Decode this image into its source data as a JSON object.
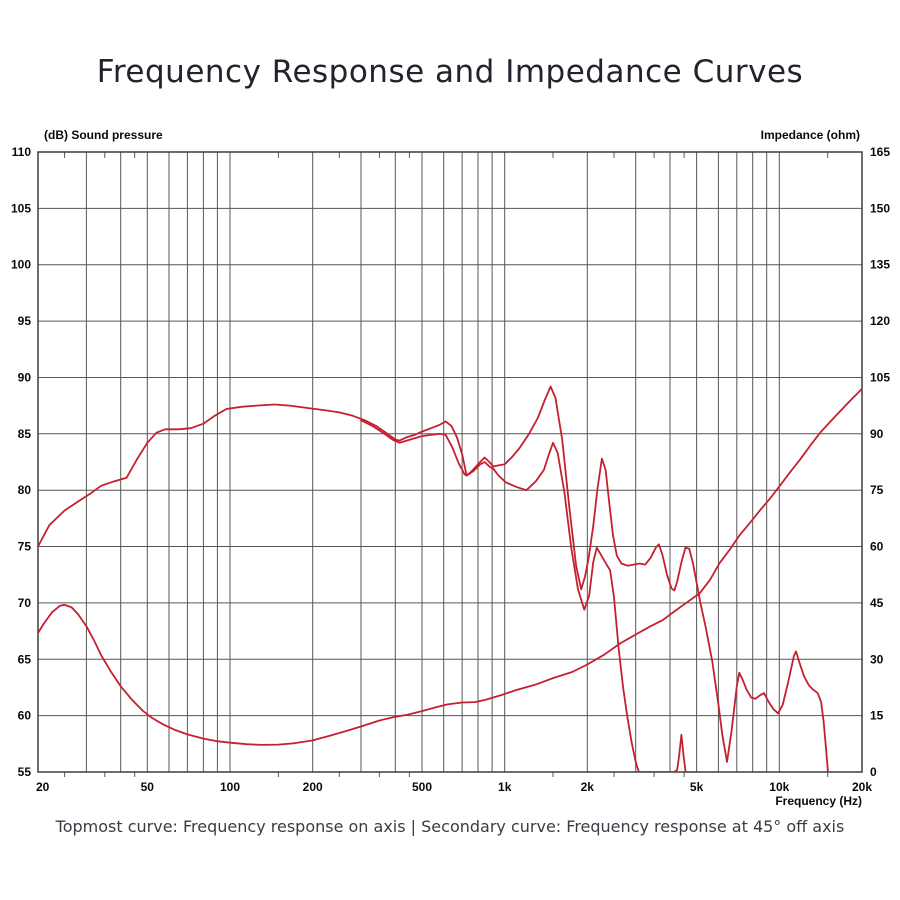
{
  "page": {
    "title": "Frequency Response and Impedance Curves",
    "caption": "Topmost curve: Frequency response on axis | Secondary curve: Frequency response at 45° off axis"
  },
  "style": {
    "background": "#ffffff",
    "curve_color": "#c4202f",
    "grid_color": "#575757",
    "frame_color": "#3d3d3d",
    "axis_text_color": "#0a0a0a",
    "title_color": "#23232d",
    "caption_color": "#3b3b46"
  },
  "chart_data": {
    "type": "line",
    "title": "Frequency Response and Impedance Curves",
    "x_axis": {
      "label": "Frequency  (Hz)",
      "scale": "log",
      "min": 20,
      "max": 20000,
      "gridlines": [
        30,
        40,
        50,
        60,
        70,
        80,
        90,
        100,
        200,
        300,
        400,
        500,
        600,
        700,
        800,
        900,
        1000,
        2000,
        3000,
        4000,
        5000,
        6000,
        7000,
        8000,
        9000,
        10000
      ],
      "minor_ticks": [
        25,
        35,
        45,
        150,
        250,
        350,
        450,
        1500,
        2500,
        3500,
        4500,
        15000
      ],
      "ticks": [
        {
          "f": 20,
          "label": "20"
        },
        {
          "f": 50,
          "label": "50"
        },
        {
          "f": 100,
          "label": "100"
        },
        {
          "f": 200,
          "label": "200"
        },
        {
          "f": 500,
          "label": "500"
        },
        {
          "f": 1000,
          "label": "1k"
        },
        {
          "f": 2000,
          "label": "2k"
        },
        {
          "f": 5000,
          "label": "5k"
        },
        {
          "f": 10000,
          "label": "10k"
        },
        {
          "f": 20000,
          "label": "20k"
        }
      ]
    },
    "y_axis_left": {
      "label": "(dB)  Sound pressure",
      "min": 55,
      "max": 110,
      "step": 5,
      "ticks": [
        110,
        105,
        100,
        95,
        90,
        85,
        80,
        75,
        70,
        65,
        60,
        55
      ]
    },
    "y_axis_right": {
      "label": "Impedance  (ohm)",
      "min": 0,
      "max": 165,
      "step": 15,
      "ticks": [
        165,
        150,
        135,
        120,
        105,
        90,
        75,
        60,
        45,
        30,
        15,
        0
      ]
    },
    "series": [
      {
        "name": "Frequency response on axis",
        "axis": "dB",
        "points": [
          [
            20,
            75
          ],
          [
            22,
            76.9
          ],
          [
            25,
            78.2
          ],
          [
            28,
            79
          ],
          [
            31,
            79.7
          ],
          [
            34,
            80.4
          ],
          [
            38,
            80.8
          ],
          [
            42,
            81.1
          ],
          [
            46,
            82.8
          ],
          [
            50,
            84.2
          ],
          [
            54,
            85.1
          ],
          [
            58,
            85.4
          ],
          [
            65,
            85.4
          ],
          [
            72,
            85.5
          ],
          [
            80,
            85.9
          ],
          [
            88,
            86.6
          ],
          [
            97,
            87.2
          ],
          [
            110,
            87.4
          ],
          [
            125,
            87.5
          ],
          [
            145,
            87.6
          ],
          [
            165,
            87.5
          ],
          [
            190,
            87.3
          ],
          [
            220,
            87.1
          ],
          [
            250,
            86.9
          ],
          [
            280,
            86.6
          ],
          [
            310,
            86.2
          ],
          [
            340,
            85.7
          ],
          [
            370,
            85.1
          ],
          [
            400,
            84.5
          ],
          [
            415,
            84.4
          ],
          [
            440,
            84.7
          ],
          [
            470,
            84.9
          ],
          [
            500,
            85.2
          ],
          [
            540,
            85.5
          ],
          [
            580,
            85.8
          ],
          [
            610,
            86.1
          ],
          [
            640,
            85.7
          ],
          [
            670,
            84.7
          ],
          [
            700,
            83.2
          ],
          [
            727,
            81.3
          ],
          [
            760,
            81.7
          ],
          [
            800,
            82.3
          ],
          [
            845,
            82.9
          ],
          [
            880,
            82.5
          ],
          [
            910,
            82.1
          ],
          [
            950,
            82.2
          ],
          [
            1000,
            82.3
          ],
          [
            1060,
            82.9
          ],
          [
            1130,
            83.7
          ],
          [
            1220,
            84.9
          ],
          [
            1320,
            86.4
          ],
          [
            1400,
            88
          ],
          [
            1470,
            89.2
          ],
          [
            1530,
            88.2
          ],
          [
            1620,
            84.5
          ],
          [
            1720,
            78.5
          ],
          [
            1820,
            73.3
          ],
          [
            1900,
            71.2
          ],
          [
            1960,
            72.3
          ],
          [
            2020,
            73.9
          ],
          [
            2100,
            76.8
          ],
          [
            2180,
            80.2
          ],
          [
            2260,
            82.8
          ],
          [
            2330,
            81.8
          ],
          [
            2400,
            79
          ],
          [
            2480,
            76
          ],
          [
            2560,
            74.2
          ],
          [
            2660,
            73.5
          ],
          [
            2800,
            73.3
          ],
          [
            2950,
            73.4
          ],
          [
            3100,
            73.5
          ],
          [
            3250,
            73.4
          ],
          [
            3400,
            74
          ],
          [
            3550,
            74.9
          ],
          [
            3640,
            75.2
          ],
          [
            3750,
            74.3
          ],
          [
            3900,
            72.5
          ],
          [
            4050,
            71.3
          ],
          [
            4150,
            71.1
          ],
          [
            4250,
            71.9
          ],
          [
            4400,
            73.6
          ],
          [
            4550,
            74.9
          ],
          [
            4700,
            74.8
          ],
          [
            4850,
            73.5
          ],
          [
            5000,
            71.8
          ],
          [
            5160,
            70
          ],
          [
            5400,
            67.8
          ],
          [
            5700,
            64.8
          ],
          [
            6000,
            61
          ],
          [
            6200,
            58.3
          ],
          [
            6450,
            55.9
          ],
          [
            6700,
            58.6
          ],
          [
            7000,
            62.6
          ],
          [
            7150,
            63.8
          ],
          [
            7350,
            63.2
          ],
          [
            7600,
            62.3
          ],
          [
            7900,
            61.6
          ],
          [
            8200,
            61.5
          ],
          [
            8500,
            61.8
          ],
          [
            8800,
            62
          ],
          [
            9100,
            61.3
          ],
          [
            9500,
            60.6
          ],
          [
            9900,
            60.2
          ],
          [
            10300,
            61
          ],
          [
            10800,
            63.1
          ],
          [
            11300,
            65.3
          ],
          [
            11500,
            65.7
          ],
          [
            11800,
            64.8
          ],
          [
            12300,
            63.5
          ],
          [
            12800,
            62.7
          ],
          [
            13300,
            62.3
          ],
          [
            13800,
            62
          ],
          [
            14200,
            61.2
          ],
          [
            14500,
            59.5
          ],
          [
            14800,
            57
          ],
          [
            15000,
            55.3
          ],
          [
            15100,
            54
          ]
        ]
      },
      {
        "name": "Frequency response at 45° off axis",
        "axis": "dB",
        "points": [
          [
            300,
            86.2
          ],
          [
            330,
            85.7
          ],
          [
            360,
            85.1
          ],
          [
            390,
            84.5
          ],
          [
            415,
            84.2
          ],
          [
            440,
            84.4
          ],
          [
            470,
            84.6
          ],
          [
            500,
            84.8
          ],
          [
            540,
            84.9
          ],
          [
            580,
            85
          ],
          [
            610,
            84.9
          ],
          [
            645,
            83.8
          ],
          [
            680,
            82.4
          ],
          [
            715,
            81.4
          ],
          [
            729,
            81.3
          ],
          [
            770,
            81.7
          ],
          [
            815,
            82.3
          ],
          [
            845,
            82.5
          ],
          [
            880,
            82.1
          ],
          [
            910,
            81.9
          ],
          [
            950,
            81.3
          ],
          [
            1010,
            80.7
          ],
          [
            1100,
            80.3
          ],
          [
            1200,
            80
          ],
          [
            1300,
            80.8
          ],
          [
            1390,
            81.8
          ],
          [
            1450,
            83.2
          ],
          [
            1500,
            84.2
          ],
          [
            1560,
            83.3
          ],
          [
            1650,
            79.8
          ],
          [
            1750,
            74.8
          ],
          [
            1850,
            71.2
          ],
          [
            1950,
            69.4
          ],
          [
            2030,
            70.6
          ],
          [
            2100,
            73.6
          ],
          [
            2165,
            74.9
          ],
          [
            2250,
            74.2
          ],
          [
            2350,
            73.4
          ],
          [
            2420,
            72.9
          ],
          [
            2500,
            70.5
          ],
          [
            2600,
            66
          ],
          [
            2700,
            62.5
          ],
          [
            2800,
            59.8
          ],
          [
            2900,
            57.6
          ],
          [
            3000,
            55.9
          ],
          [
            3080,
            55
          ],
          [
            3300,
            55
          ],
          [
            3600,
            55
          ],
          [
            3900,
            55
          ],
          [
            4150,
            55
          ],
          [
            4250,
            55.2
          ],
          [
            4320,
            56.5
          ],
          [
            4400,
            58.3
          ],
          [
            4480,
            56.5
          ],
          [
            4560,
            55
          ],
          [
            4700,
            55
          ],
          [
            4800,
            54.8
          ]
        ]
      },
      {
        "name": "Impedance",
        "axis": "ohm",
        "points": [
          [
            20,
            37
          ],
          [
            21,
            39.5
          ],
          [
            22.5,
            42.5
          ],
          [
            24,
            44.2
          ],
          [
            25,
            44.5
          ],
          [
            26.5,
            43.8
          ],
          [
            28,
            42
          ],
          [
            30,
            38.8
          ],
          [
            32,
            35
          ],
          [
            34,
            31
          ],
          [
            37,
            26.5
          ],
          [
            40,
            22.8
          ],
          [
            44,
            19.2
          ],
          [
            48,
            16.4
          ],
          [
            52,
            14.4
          ],
          [
            57,
            12.7
          ],
          [
            63,
            11.2
          ],
          [
            70,
            10
          ],
          [
            80,
            8.9
          ],
          [
            90,
            8.2
          ],
          [
            100,
            7.8
          ],
          [
            115,
            7.4
          ],
          [
            130,
            7.2
          ],
          [
            150,
            7.3
          ],
          [
            170,
            7.6
          ],
          [
            200,
            8.4
          ],
          [
            230,
            9.6
          ],
          [
            265,
            10.9
          ],
          [
            300,
            12.1
          ],
          [
            350,
            13.7
          ],
          [
            400,
            14.7
          ],
          [
            440,
            15.2
          ],
          [
            500,
            16.2
          ],
          [
            560,
            17.2
          ],
          [
            620,
            18
          ],
          [
            700,
            18.5
          ],
          [
            780,
            18.6
          ],
          [
            850,
            19.2
          ],
          [
            975,
            20.5
          ],
          [
            1100,
            21.8
          ],
          [
            1290,
            23.2
          ],
          [
            1500,
            25
          ],
          [
            1760,
            26.6
          ],
          [
            2000,
            28.6
          ],
          [
            2300,
            31.2
          ],
          [
            2630,
            34.2
          ],
          [
            3000,
            36.6
          ],
          [
            3400,
            38.8
          ],
          [
            3760,
            40.4
          ],
          [
            4200,
            43
          ],
          [
            4700,
            45.6
          ],
          [
            5140,
            47.6
          ],
          [
            5600,
            51.2
          ],
          [
            6060,
            55.6
          ],
          [
            6600,
            59.2
          ],
          [
            7180,
            63.1
          ],
          [
            7800,
            66.2
          ],
          [
            8520,
            69.7
          ],
          [
            9300,
            73
          ],
          [
            10100,
            76.4
          ],
          [
            11000,
            80
          ],
          [
            12000,
            83.5
          ],
          [
            13000,
            87
          ],
          [
            14200,
            90.6
          ],
          [
            15500,
            93.6
          ],
          [
            16800,
            96.3
          ],
          [
            18000,
            98.6
          ],
          [
            20000,
            102
          ]
        ]
      }
    ]
  }
}
